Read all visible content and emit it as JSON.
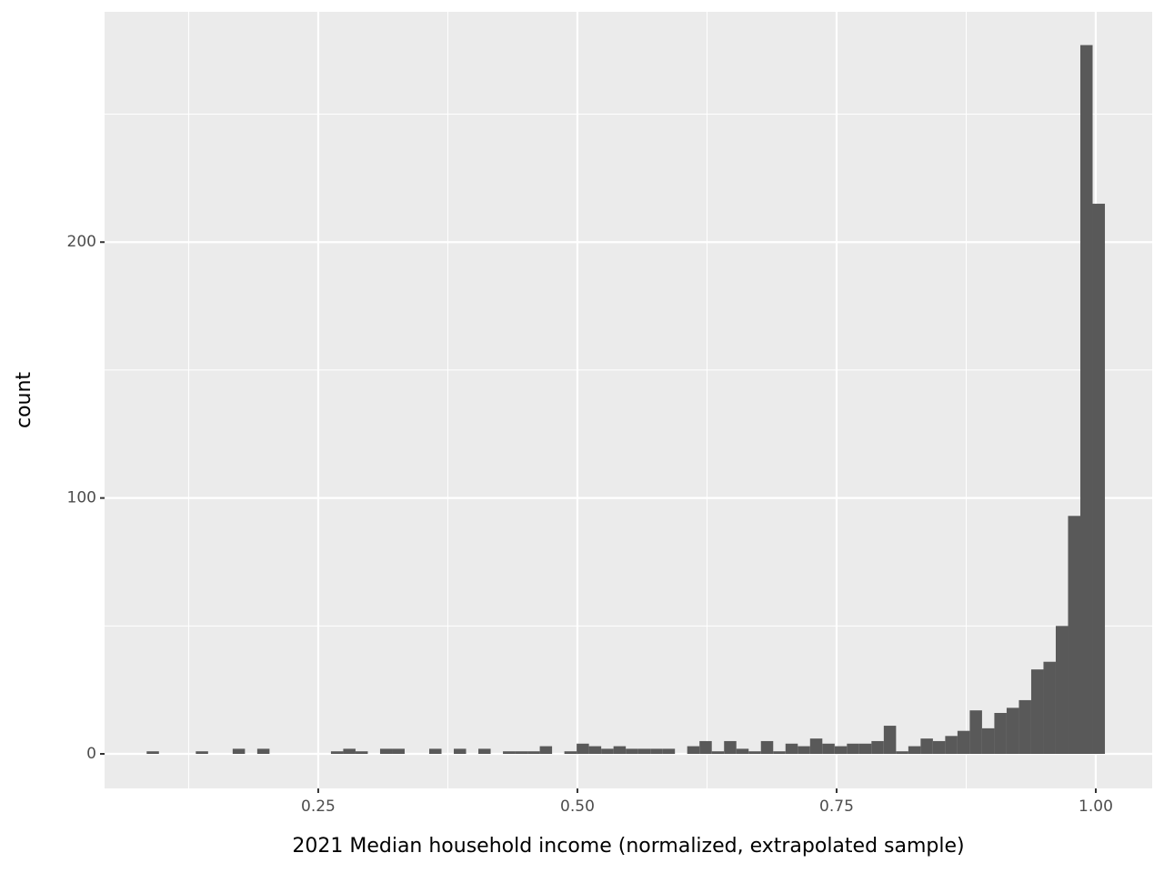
{
  "chart_data": {
    "type": "histogram",
    "x_label": "2021 Median household income (normalized, extrapolated sample)",
    "y_label": "count",
    "color": "#595959",
    "bins": [
      0.0845,
      0.09635,
      0.1082,
      0.12005,
      0.1319,
      0.14375,
      0.1556,
      0.16745,
      0.1793,
      0.19115,
      0.203,
      0.21485,
      0.2267,
      0.23855,
      0.2504,
      0.26225,
      0.2741,
      0.28595,
      0.2978,
      0.30965,
      0.3215,
      0.33335,
      0.3452,
      0.35705,
      0.3689,
      0.38075,
      0.3926,
      0.40445,
      0.4163,
      0.42815,
      0.44,
      0.45185,
      0.4637,
      0.47555,
      0.4874,
      0.49925,
      0.5111,
      0.52295,
      0.5348,
      0.54665,
      0.5585,
      0.57035,
      0.5822,
      0.59405,
      0.6059,
      0.61775,
      0.6296,
      0.64145,
      0.6533,
      0.66515,
      0.677,
      0.68885,
      0.7007,
      0.71255,
      0.7244,
      0.73625,
      0.7481,
      0.75995,
      0.7718,
      0.78365,
      0.7955,
      0.80735,
      0.8192,
      0.83105,
      0.8429,
      0.85475,
      0.8666,
      0.87845,
      0.8903,
      0.90215,
      0.914,
      0.92585,
      0.9377,
      0.94955,
      0.9614,
      0.97325,
      0.9851,
      0.99695,
      1.0088
    ],
    "values": [
      1,
      0,
      0,
      0,
      1,
      0,
      0,
      2,
      0,
      2,
      0,
      0,
      0,
      0,
      0,
      1,
      2,
      1,
      0,
      2,
      2,
      0,
      0,
      2,
      0,
      2,
      0,
      2,
      0,
      1,
      1,
      1,
      3,
      0,
      1,
      4,
      3,
      2,
      3,
      2,
      2,
      2,
      2,
      0,
      3,
      5,
      1,
      5,
      2,
      1,
      5,
      1,
      4,
      3,
      6,
      4,
      3,
      4,
      4,
      5,
      11,
      1,
      3,
      6,
      5,
      7,
      9,
      17,
      10,
      16,
      18,
      21,
      33,
      36,
      50,
      93,
      277,
      215
    ],
    "xlim": [
      0.0439,
      1.0544
    ],
    "ylim": [
      -13.5,
      290
    ],
    "xticks": [
      {
        "value": 0.25,
        "label": "0.25"
      },
      {
        "value": 0.5,
        "label": "0.50"
      },
      {
        "value": 0.75,
        "label": "0.75"
      },
      {
        "value": 1.0,
        "label": "1.00"
      }
    ],
    "yticks": [
      0,
      100,
      200
    ],
    "xminor": [
      0.125,
      0.375,
      0.625,
      0.875
    ],
    "yminor": [
      50,
      150,
      250
    ],
    "grid": true
  }
}
